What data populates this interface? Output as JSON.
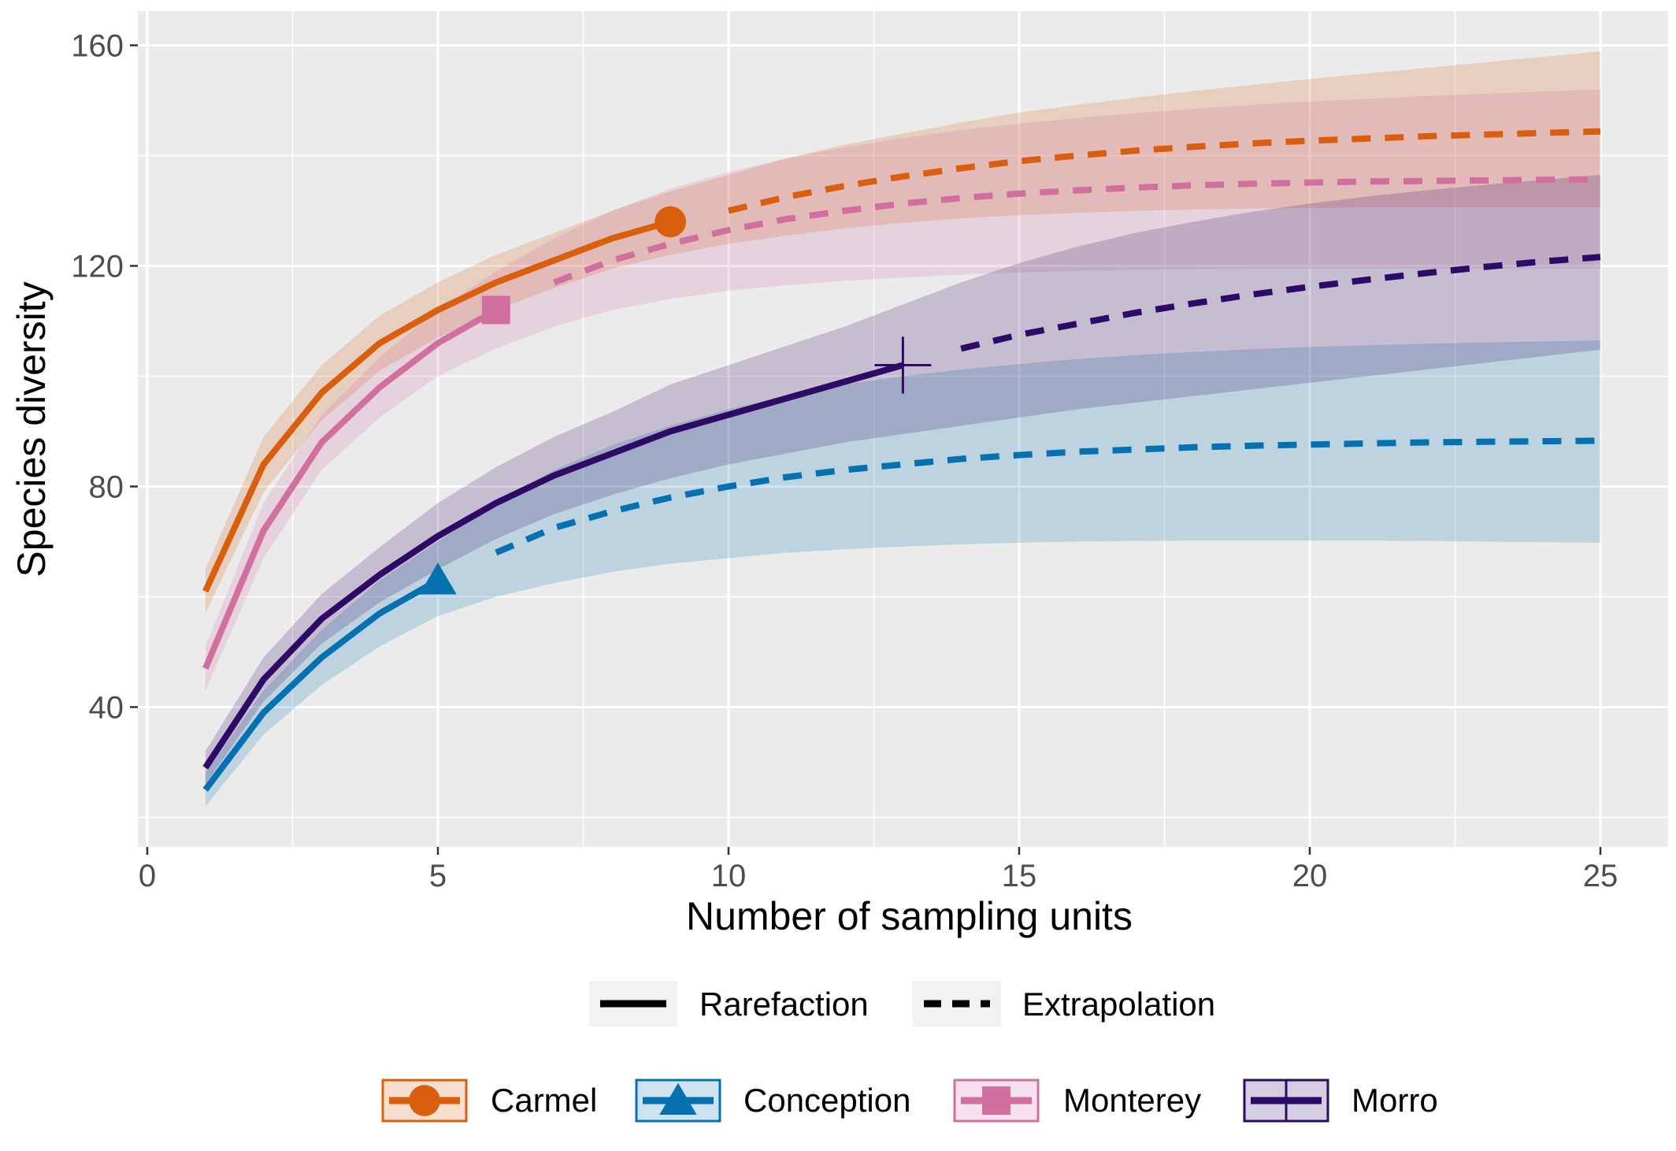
{
  "chart_data": {
    "type": "line",
    "title": "",
    "xlabel": "Number of sampling units",
    "ylabel": "Species diversity",
    "xlim": [
      -0.25,
      26
    ],
    "ylim": [
      15,
      167
    ],
    "x_ticks": [
      0,
      5,
      10,
      15,
      20,
      25
    ],
    "y_ticks": [
      40,
      80,
      120,
      160
    ],
    "grid": true,
    "background": "#ebebeb",
    "legend_position": "bottom",
    "linetype_legend": [
      {
        "label": "Rarefaction",
        "linetype": "solid"
      },
      {
        "label": "Extrapolation",
        "linetype": "dashed"
      }
    ],
    "series": [
      {
        "name": "Carmel",
        "color": "#d95f0e",
        "marker": "circle",
        "reference_point": {
          "x": 9,
          "y": 128
        },
        "rarefaction": {
          "x": [
            1,
            2,
            3,
            4,
            5,
            6,
            7,
            8,
            9
          ],
          "y": [
            61,
            84,
            97,
            106,
            112,
            117,
            121,
            125,
            128
          ]
        },
        "extrapolation": {
          "x": [
            10,
            11,
            12,
            13,
            14,
            15,
            16,
            17,
            18,
            19,
            20,
            21,
            22,
            23,
            24,
            25
          ],
          "y": [
            130,
            132.5,
            134.5,
            136.2,
            137.7,
            139,
            140,
            140.9,
            141.6,
            142.2,
            142.7,
            143.1,
            143.5,
            143.8,
            144.1,
            144.4
          ]
        },
        "ci_lower": [
          57,
          79,
          92,
          101,
          107,
          112,
          116,
          119.5,
          122,
          124,
          125.5,
          126.8,
          127.8,
          128.6,
          129.2,
          129.6,
          130,
          130.2,
          130.4,
          130.5,
          130.6,
          130.6,
          130.6,
          130.6,
          130.6
        ],
        "ci_upper": [
          65,
          89,
          102,
          111,
          117,
          122,
          126,
          130,
          133.5,
          136.5,
          139.5,
          142,
          144,
          146,
          147.8,
          149.2,
          150.5,
          151.7,
          152.8,
          153.9,
          154.9,
          155.9,
          156.9,
          157.9,
          158.9
        ]
      },
      {
        "name": "Conception",
        "color": "#0571b0",
        "marker": "triangle",
        "reference_point": {
          "x": 5,
          "y": 63
        },
        "rarefaction": {
          "x": [
            1,
            2,
            3,
            4,
            5
          ],
          "y": [
            25,
            39,
            49,
            57,
            63
          ]
        },
        "extrapolation": {
          "x": [
            6,
            7,
            8,
            9,
            10,
            11,
            12,
            13,
            14,
            15,
            16,
            17,
            18,
            19,
            20,
            21,
            22,
            23,
            24,
            25
          ],
          "y": [
            68,
            72.5,
            75.5,
            78,
            80,
            81.7,
            83,
            84,
            85,
            85.7,
            86.3,
            86.7,
            87.1,
            87.4,
            87.6,
            87.8,
            88,
            88.1,
            88.2,
            88.3
          ]
        },
        "ci_lower": [
          22,
          35,
          44,
          51,
          56.5,
          60,
          62.5,
          64.5,
          66,
          67,
          68,
          68.6,
          69.1,
          69.5,
          69.8,
          70,
          70.1,
          70.2,
          70.2,
          70.2,
          70.2,
          70.1,
          70,
          69.9,
          69.8
        ],
        "ci_upper": [
          28,
          43,
          54,
          63,
          70,
          77,
          83,
          87.5,
          91,
          94,
          96.5,
          98.5,
          100,
          101.2,
          102.2,
          103.1,
          103.8,
          104.4,
          104.9,
          105.3,
          105.6,
          105.9,
          106.1,
          106.3,
          106.5
        ]
      },
      {
        "name": "Monterey",
        "color": "#d1709f",
        "marker": "square",
        "reference_point": {
          "x": 6,
          "y": 112
        },
        "rarefaction": {
          "x": [
            1,
            2,
            3,
            4,
            5,
            6
          ],
          "y": [
            47,
            72,
            88,
            98,
            106,
            112
          ]
        },
        "extrapolation": {
          "x": [
            7,
            8,
            9,
            10,
            11,
            12,
            13,
            14,
            15,
            16,
            17,
            18,
            19,
            20,
            21,
            22,
            23,
            24,
            25
          ],
          "y": [
            117,
            121,
            124,
            126.5,
            128.5,
            130,
            131.3,
            132.3,
            133.1,
            133.7,
            134.2,
            134.6,
            134.9,
            135.1,
            135.3,
            135.4,
            135.5,
            135.6,
            135.7
          ]
        },
        "ci_lower": [
          43,
          67,
          83,
          92.5,
          100,
          105,
          109,
          112,
          114,
          115.5,
          116.5,
          117.3,
          117.9,
          118.4,
          118.8,
          119.1,
          119.3,
          119.4,
          119.5,
          119.5,
          119.5,
          119.5,
          119.5,
          119.5,
          119.5
        ],
        "ci_upper": [
          51,
          77,
          93,
          103.5,
          112,
          119,
          125,
          130,
          134,
          137,
          139.5,
          141.5,
          143.2,
          144.6,
          145.8,
          146.8,
          147.7,
          148.5,
          149.2,
          149.8,
          150.3,
          150.8,
          151.2,
          151.6,
          152
        ]
      },
      {
        "name": "Morro",
        "color": "#2d0a66",
        "marker": "cross",
        "reference_point": {
          "x": 13,
          "y": 102
        },
        "rarefaction": {
          "x": [
            1,
            2,
            3,
            4,
            5,
            6,
            7,
            8,
            9,
            10,
            11,
            12,
            13
          ],
          "y": [
            29,
            45,
            56,
            64,
            71,
            77,
            82,
            86,
            90,
            93,
            96,
            99,
            102
          ]
        },
        "extrapolation": {
          "x": [
            14,
            15,
            16,
            17,
            18,
            19,
            20,
            21,
            22,
            23,
            24,
            25
          ],
          "y": [
            105,
            107.5,
            109.5,
            111.5,
            113.2,
            114.8,
            116.2,
            117.5,
            118.7,
            119.8,
            120.8,
            121.6
          ]
        },
        "ci_lower": [
          26,
          41,
          51.5,
          59,
          65,
          70.5,
          75,
          78.5,
          81.5,
          84,
          86,
          88,
          89.5,
          91,
          92.5,
          94,
          95.2,
          96.4,
          97.6,
          98.8,
          100,
          101.2,
          102.4,
          103.6,
          104.8
        ],
        "ci_upper": [
          32,
          49,
          60.5,
          69,
          77,
          83.5,
          89,
          93.5,
          98.5,
          102,
          105.5,
          109,
          113,
          117,
          120.5,
          123.5,
          126,
          128,
          129.8,
          131.3,
          132.6,
          133.7,
          134.7,
          135.6,
          136.5
        ]
      }
    ]
  }
}
